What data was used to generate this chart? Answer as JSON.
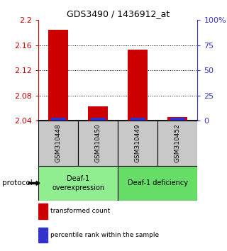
{
  "title": "GDS3490 / 1436912_at",
  "samples": [
    "GSM310448",
    "GSM310450",
    "GSM310449",
    "GSM310452"
  ],
  "red_values": [
    2.185,
    2.063,
    2.153,
    2.045
  ],
  "ylim_min": 2.04,
  "ylim_max": 2.2,
  "yticks_left": [
    2.04,
    2.08,
    2.12,
    2.16,
    2.2
  ],
  "yticks_right": [
    0,
    25,
    50,
    75,
    100
  ],
  "ytick_labels_right": [
    "0",
    "25",
    "50",
    "75",
    "100%"
  ],
  "gridlines": [
    2.08,
    2.12,
    2.16
  ],
  "group0_label": "Deaf-1\noverexpression",
  "group1_label": "Deaf-1 deficiency",
  "group0_color": "#90ee90",
  "group1_color": "#66dd66",
  "sample_bg_color": "#c8c8c8",
  "red_color": "#cc0000",
  "blue_color": "#3333cc",
  "bar_width": 0.5,
  "legend_red": "transformed count",
  "legend_blue": "percentile rank within the sample",
  "protocol_label": "protocol",
  "left_tick_color": "#cc0000",
  "right_tick_color": "#3333cc"
}
